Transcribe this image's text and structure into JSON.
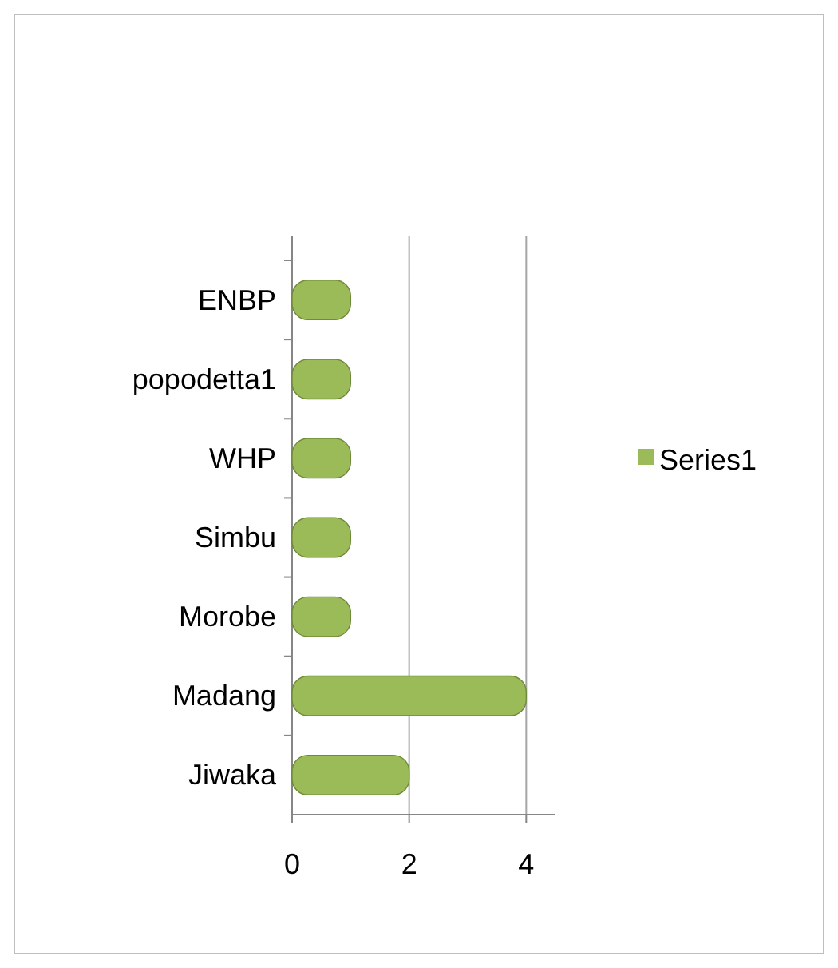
{
  "chart_data": {
    "type": "bar",
    "orientation": "horizontal",
    "categories": [
      "ENBP",
      "popodetta1",
      "WHP",
      "Simbu",
      "Morobe",
      "Madang",
      "Jiwaka"
    ],
    "series": [
      {
        "name": "Series1",
        "color": "#9bbb59",
        "values": [
          1,
          1,
          1,
          1,
          1,
          4,
          2
        ]
      }
    ],
    "xlim": [
      0,
      4.5
    ],
    "xticks": [
      0,
      2,
      4
    ],
    "grid": "x",
    "legend": "right"
  }
}
